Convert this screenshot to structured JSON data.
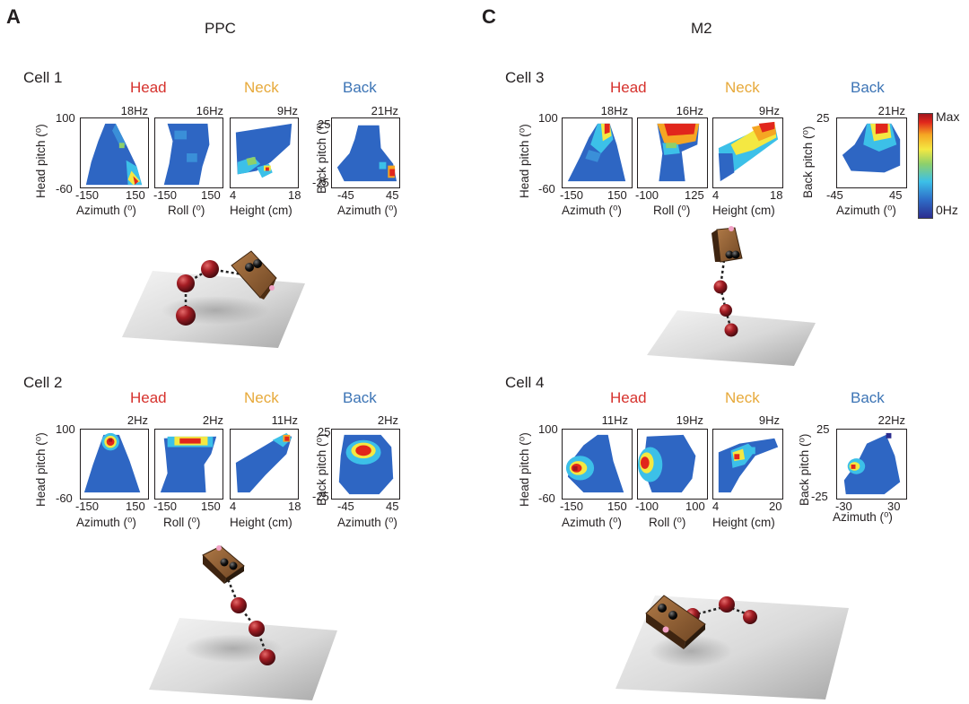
{
  "panels": {
    "A": {
      "letter": "A",
      "region": "PPC"
    },
    "C": {
      "letter": "C",
      "region": "M2"
    }
  },
  "groups": {
    "head": "Head",
    "neck": "Neck",
    "back": "Back"
  },
  "colors": {
    "head": "#d6322d",
    "neck": "#e7a93a",
    "back": "#3c74b5"
  },
  "cells": {
    "c1": {
      "label": "Cell 1",
      "rates": {
        "az": "18Hz",
        "roll": "16Hz",
        "height": "9Hz",
        "back": "21Hz"
      },
      "ticks": {
        "az": [
          "-150",
          "150"
        ],
        "roll": [
          "-150",
          "150"
        ],
        "height": [
          "4",
          "18"
        ],
        "back": [
          "-45",
          "45"
        ]
      }
    },
    "c2": {
      "label": "Cell 2",
      "rates": {
        "az": "2Hz",
        "roll": "2Hz",
        "height": "11Hz",
        "back": "2Hz"
      },
      "ticks": {
        "az": [
          "-150",
          "150"
        ],
        "roll": [
          "-150",
          "150"
        ],
        "height": [
          "4",
          "18"
        ],
        "back": [
          "-45",
          "45"
        ]
      }
    },
    "c3": {
      "label": "Cell 3",
      "rates": {
        "az": "18Hz",
        "roll": "16Hz",
        "height": "9Hz",
        "back": "21Hz"
      },
      "ticks": {
        "az": [
          "-150",
          "150"
        ],
        "roll": [
          "-100",
          "125"
        ],
        "height": [
          "4",
          "18"
        ],
        "back": [
          "-45",
          "45"
        ]
      }
    },
    "c4": {
      "label": "Cell 4",
      "rates": {
        "az": "11Hz",
        "roll": "19Hz",
        "height": "9Hz",
        "back": "22Hz"
      },
      "ticks": {
        "az": [
          "-150",
          "150"
        ],
        "roll": [
          "-100",
          "100"
        ],
        "height": [
          "4",
          "20"
        ],
        "back": [
          "-30",
          "30"
        ]
      }
    }
  },
  "axes": {
    "head_pitch": "Head pitch (⁰)",
    "back_pitch": "Back pitch (⁰)",
    "azimuth": "Azimuth (⁰)",
    "roll": "Roll (⁰)",
    "height": "Height (cm)",
    "head_pitch_top": "100",
    "head_pitch_bottom": "-60",
    "back_pitch_top": "25",
    "back_pitch_bottom": "-25"
  },
  "colorbar": {
    "max": "Max",
    "min": "0Hz"
  }
}
